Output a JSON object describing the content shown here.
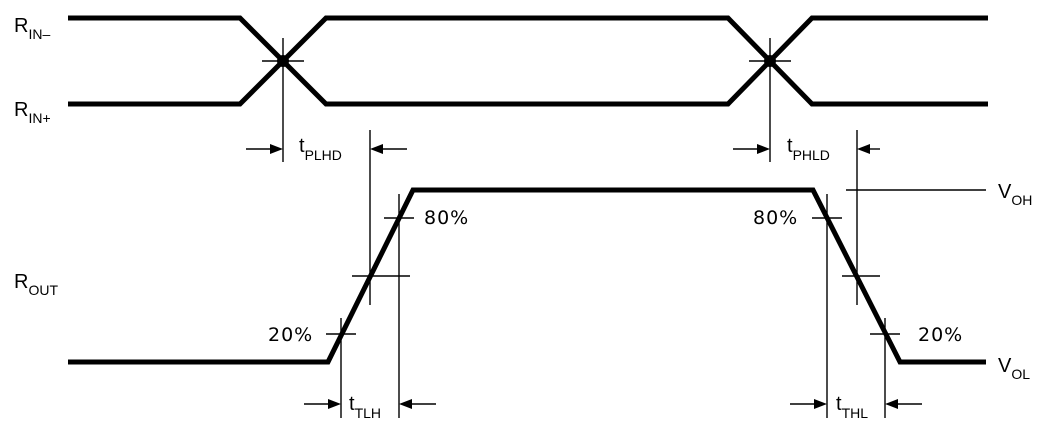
{
  "signals": {
    "rin_minus": {
      "main": "R",
      "sub": "IN–"
    },
    "rin_plus": {
      "main": "R",
      "sub": "IN+"
    },
    "rout": {
      "main": "R",
      "sub": "OUT"
    }
  },
  "levels": {
    "voh": {
      "main": "V",
      "sub": "OH"
    },
    "vol": {
      "main": "V",
      "sub": "OL"
    }
  },
  "timing": {
    "tplhd": {
      "main": "t",
      "sub": "PLHD"
    },
    "tphld": {
      "main": "t",
      "sub": "PHLD"
    },
    "ttlh": {
      "main": "t",
      "sub": "TLH"
    },
    "tthl": {
      "main": "t",
      "sub": "THL"
    }
  },
  "percent": {
    "rise_80": "80%",
    "rise_20": "20%",
    "fall_80": "80%",
    "fall_20": "20%"
  }
}
